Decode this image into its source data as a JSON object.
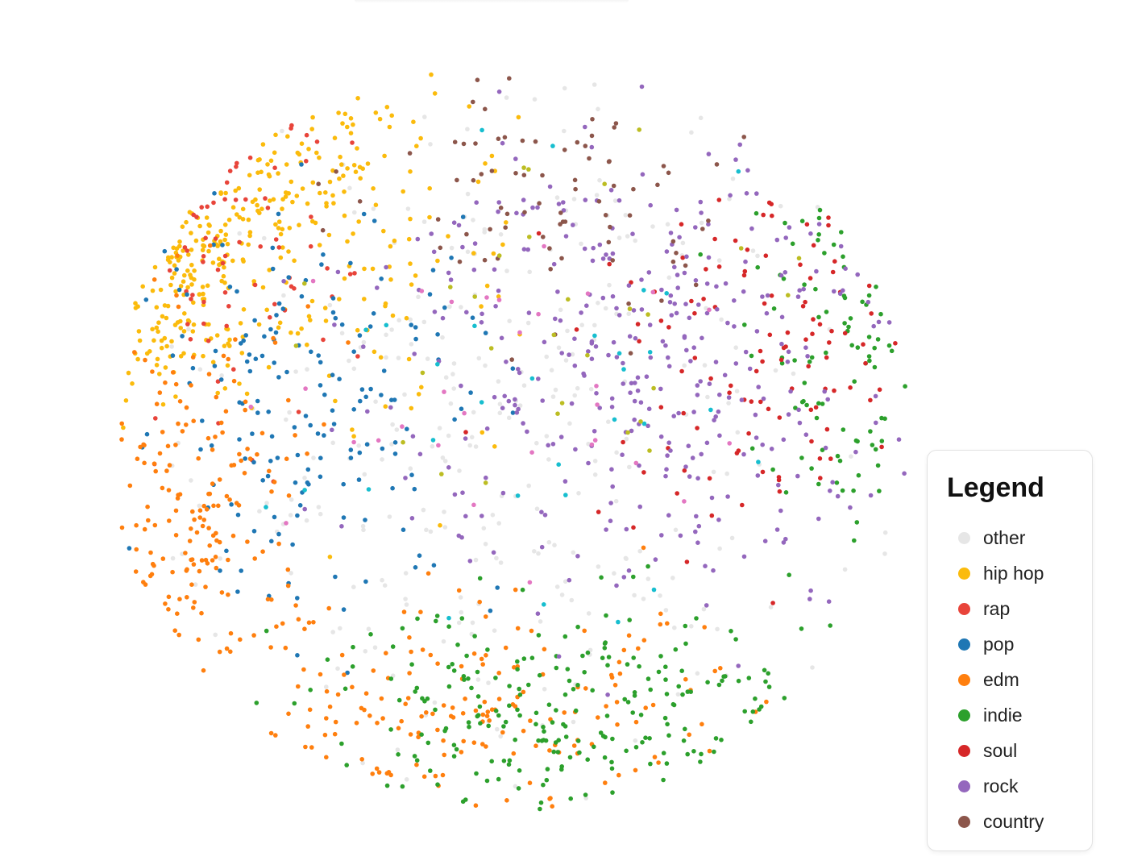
{
  "chart_data": {
    "type": "scatter",
    "title": "",
    "xlabel": "",
    "ylabel": "",
    "grid": false,
    "axes_visible": false,
    "legend": {
      "title": "Legend",
      "placement": "bottom-right",
      "entries": [
        {
          "label": "other",
          "color": "#e6e6e6"
        },
        {
          "label": "hip hop",
          "color": "#fbbb0c"
        },
        {
          "label": "rap",
          "color": "#e8443a"
        },
        {
          "label": "pop",
          "color": "#1f77b4"
        },
        {
          "label": "edm",
          "color": "#ff7f0e"
        },
        {
          "label": "indie",
          "color": "#2ca02c"
        },
        {
          "label": "soul",
          "color": "#d62728"
        },
        {
          "label": "rock",
          "color": "#9467bd"
        },
        {
          "label": "country",
          "color": "#8c564b"
        }
      ]
    },
    "extra_marker_colors": [
      "#17becf",
      "#bcbd22",
      "#e377c2"
    ],
    "xlim": [
      0,
      100
    ],
    "ylim": [
      0,
      100
    ],
    "point_count": 2200,
    "clusters": [
      {
        "series": "hip hop",
        "center": [
          8,
          75
        ],
        "spread": [
          6,
          10
        ],
        "count": 180
      },
      {
        "series": "hip hop",
        "center": [
          22,
          85
        ],
        "spread": [
          10,
          8
        ],
        "count": 120
      },
      {
        "series": "hip hop",
        "center": [
          37,
          70
        ],
        "spread": [
          8,
          12
        ],
        "count": 60
      },
      {
        "series": "rap",
        "center": [
          10,
          75
        ],
        "spread": [
          10,
          12
        ],
        "count": 70
      },
      {
        "series": "pop",
        "center": [
          25,
          55
        ],
        "spread": [
          12,
          14
        ],
        "count": 170
      },
      {
        "series": "edm",
        "center": [
          10,
          40
        ],
        "spread": [
          8,
          13
        ],
        "count": 180
      },
      {
        "series": "edm",
        "center": [
          45,
          12
        ],
        "spread": [
          18,
          7
        ],
        "count": 170
      },
      {
        "series": "indie",
        "center": [
          60,
          12
        ],
        "spread": [
          18,
          8
        ],
        "count": 230
      },
      {
        "series": "indie",
        "center": [
          92,
          60
        ],
        "spread": [
          6,
          12
        ],
        "count": 90
      },
      {
        "series": "soul",
        "center": [
          82,
          62
        ],
        "spread": [
          12,
          12
        ],
        "count": 110
      },
      {
        "series": "rock",
        "center": [
          68,
          62
        ],
        "spread": [
          17,
          17
        ],
        "count": 360
      },
      {
        "series": "country",
        "center": [
          55,
          82
        ],
        "spread": [
          12,
          9
        ],
        "count": 80
      },
      {
        "series": "other",
        "center": [
          48,
          50
        ],
        "spread": [
          22,
          24
        ],
        "count": 300
      }
    ]
  }
}
